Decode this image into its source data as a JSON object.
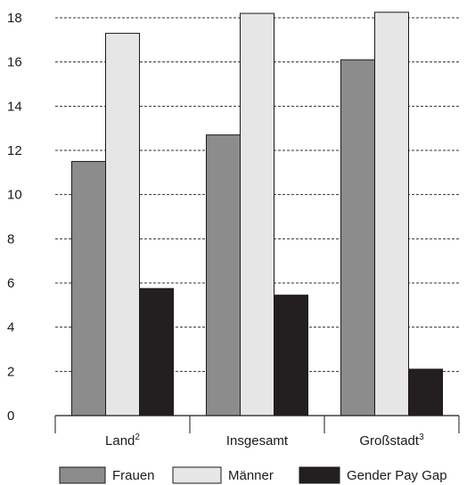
{
  "chart_data": {
    "type": "bar",
    "title": "",
    "xlabel": "",
    "ylabel": "",
    "ylim": [
      0,
      18
    ],
    "yticks": [
      0,
      2,
      4,
      6,
      8,
      10,
      12,
      14,
      16,
      18
    ],
    "grid": "horizontal-dashed",
    "legend_position": "bottom",
    "categories": [
      {
        "label": "Land",
        "sup": "2"
      },
      {
        "label": "Insgesamt",
        "sup": ""
      },
      {
        "label": "Großstadt",
        "sup": "3"
      }
    ],
    "series": [
      {
        "name": "Frauen",
        "color": "#8c8c8c",
        "values": [
          11.5,
          12.7,
          16.1
        ]
      },
      {
        "name": "Männer",
        "color": "#e6e6e6",
        "values": [
          17.3,
          18.2,
          18.25
        ]
      },
      {
        "name": "Gender Pay Gap",
        "color": "#231f20",
        "values": [
          5.75,
          5.45,
          2.1
        ]
      }
    ]
  }
}
